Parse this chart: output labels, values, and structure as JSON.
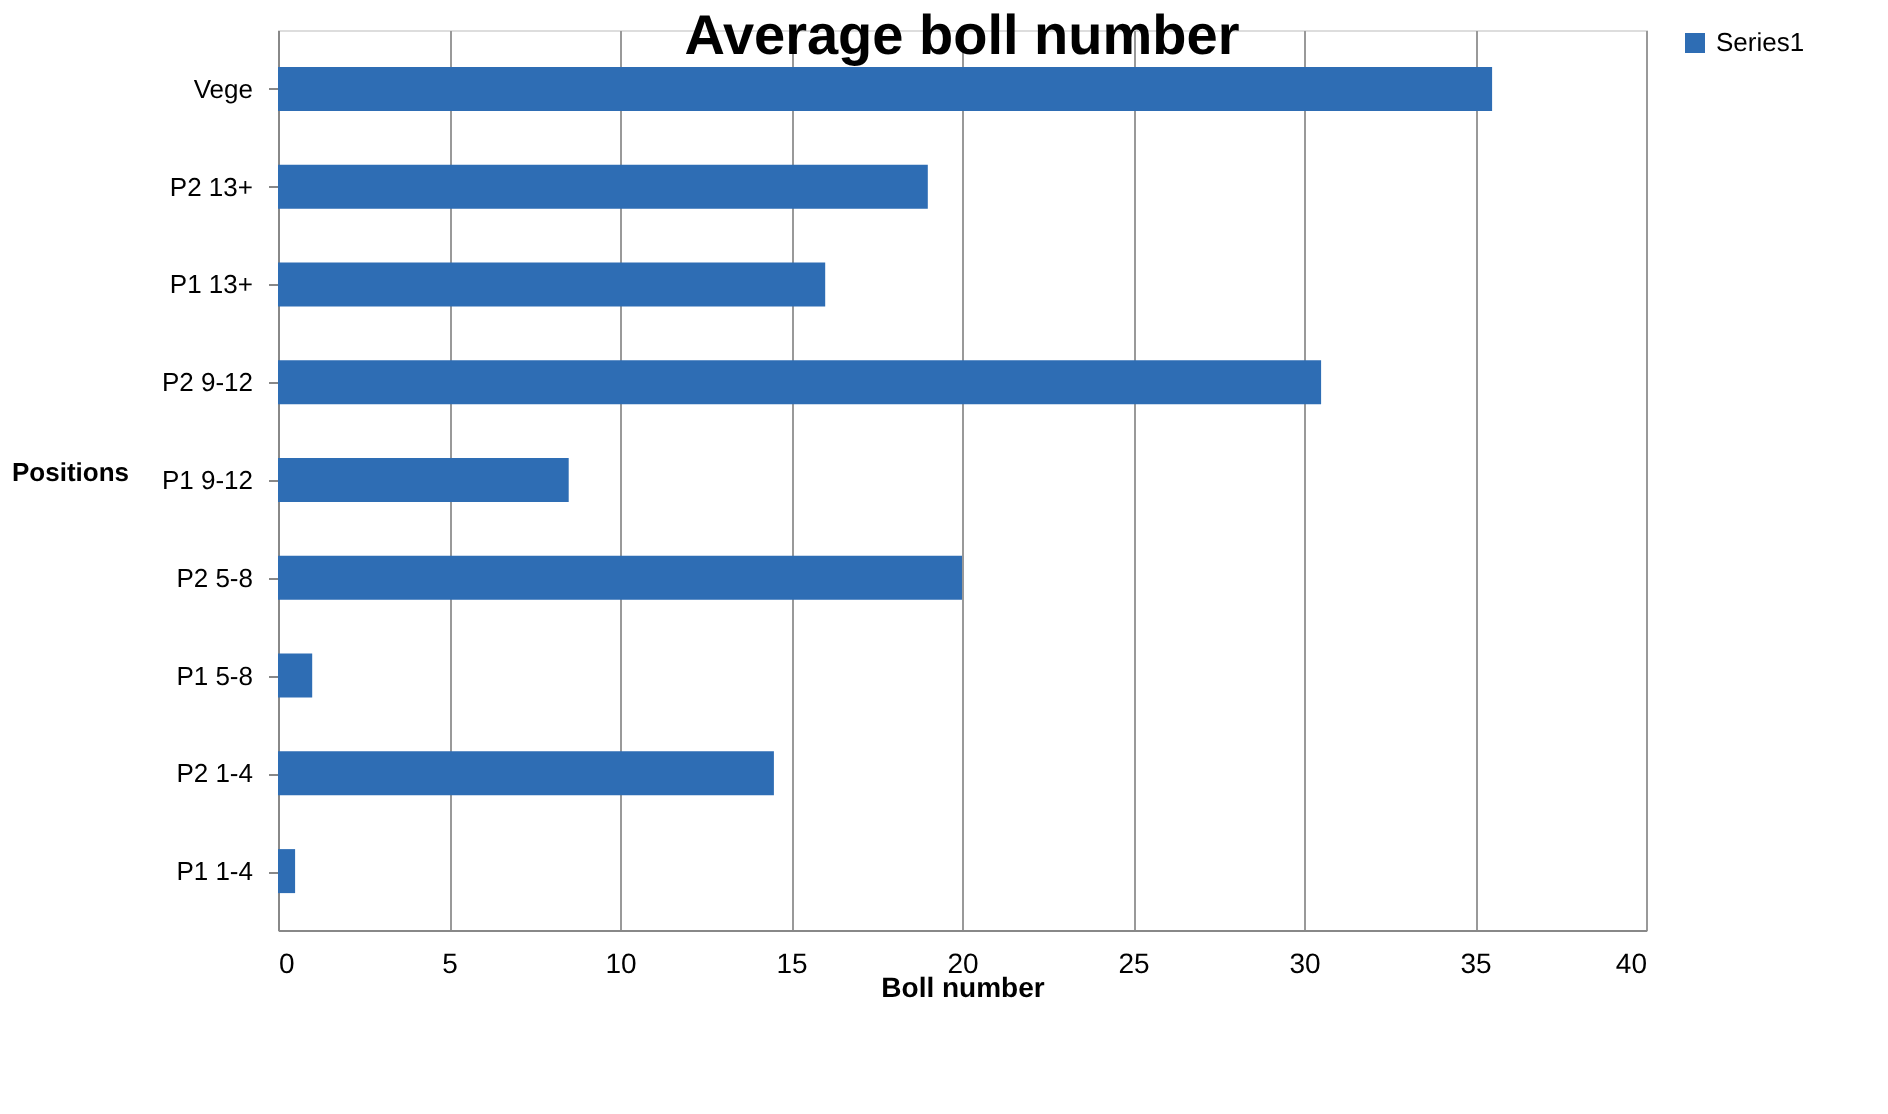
{
  "chart_data": {
    "type": "bar",
    "orientation": "horizontal",
    "title": "Average boll number",
    "xlabel": "Boll number",
    "ylabel": "Positions",
    "categories": [
      "Vege",
      "P2 13+",
      "P1  13+",
      "P2 9-12",
      "P1 9-12",
      "P2 5-8",
      "P1 5-8",
      "P2  1-4",
      "P1 1-4"
    ],
    "series": [
      {
        "name": "Series1",
        "color": "#2e6db4",
        "values": [
          35.5,
          19,
          16,
          30.5,
          8.5,
          20,
          1,
          14.5,
          0.5
        ]
      }
    ],
    "xlim": [
      0,
      40
    ],
    "xticks": [
      0,
      5,
      10,
      15,
      20,
      25,
      30,
      35,
      40
    ],
    "grid": "x",
    "legend": "right"
  }
}
